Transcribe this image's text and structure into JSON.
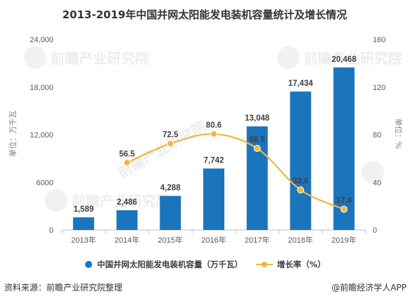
{
  "chart_data": {
    "type": "bar",
    "title": "2013-2019年中国并网太阳能发电装机容量统计及增长情况",
    "categories": [
      "2013年",
      "2014年",
      "2015年",
      "2016年",
      "2017年",
      "2018年",
      "2019年"
    ],
    "series": [
      {
        "name": "中国并网太阳能发电装机容量（万千瓦）",
        "type": "bar",
        "axis": "left",
        "values": [
          1589,
          2486,
          4288,
          7742,
          13048,
          17434,
          20468
        ],
        "value_labels": [
          "1,589",
          "2,486",
          "4,288",
          "7,742",
          "13,048",
          "17,434",
          "20,468"
        ]
      },
      {
        "name": "增长率（%）",
        "type": "line",
        "axis": "right",
        "values": [
          null,
          56.5,
          72.5,
          80.6,
          68.5,
          33.6,
          17.4
        ],
        "value_labels": [
          "",
          "56.5",
          "72.5",
          "80.6",
          "68.5",
          "33.6",
          "17.4"
        ]
      }
    ],
    "y_left": {
      "label": "单位：万千瓦",
      "lim": [
        0,
        24000
      ],
      "ticks": [
        0,
        6000,
        12000,
        18000,
        24000
      ],
      "tick_labels": [
        "0",
        "6000",
        "12,000",
        "18,000",
        "24,000"
      ]
    },
    "y_right": {
      "label": "单位：%",
      "lim": [
        0,
        160
      ],
      "ticks": [
        0,
        40,
        80,
        120,
        160
      ],
      "tick_labels": [
        "0",
        "40",
        "80",
        "120",
        "160"
      ]
    },
    "grid": false,
    "legend_position": "bottom"
  },
  "colors": {
    "bar": "#1b75bc",
    "line": "#f0b73b",
    "axis": "#bfbfbf"
  },
  "footer": {
    "source": "资料来源：前瞻产业研究院整理",
    "brand": "@前瞻经济学人APP"
  },
  "watermark": {
    "text": "前瞻产业研究院"
  }
}
